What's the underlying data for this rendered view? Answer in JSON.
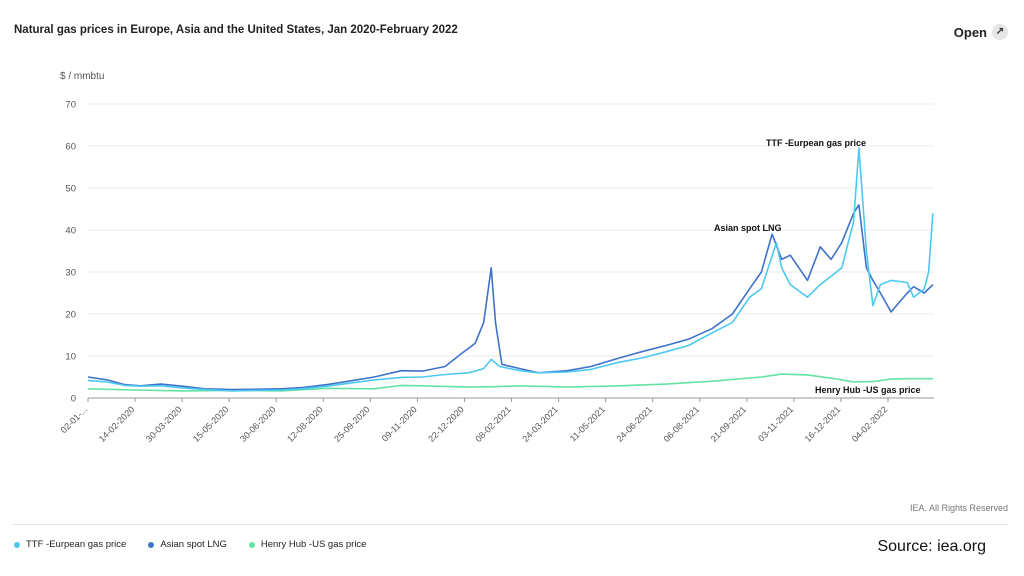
{
  "header": {
    "title": "Natural gas prices in Europe, Asia and the United States, Jan 2020-February 2022",
    "open_label": "Open"
  },
  "footer": {
    "rights": "IEA. All Rights Reserved",
    "source": "Source: iea.org"
  },
  "chart_data": {
    "type": "line",
    "yunit": "$ / mmbtu",
    "ylim": [
      0,
      70
    ],
    "yticks": [
      0,
      10,
      20,
      30,
      40,
      50,
      60,
      70
    ],
    "grid": true,
    "legend_position": "bottom",
    "xlim": [
      "2020-01-02",
      "2022-03-01"
    ],
    "xticks": [
      "02-01-...",
      "14-02-2020",
      "30-03-2020",
      "15-05-2020",
      "30-06-2020",
      "12-08-2020",
      "25-09-2020",
      "09-11-2020",
      "22-12-2020",
      "08-02-2021",
      "24-03-2021",
      "11-05-2021",
      "24-06-2021",
      "06-08-2021",
      "21-09-2021",
      "03-11-2021",
      "16-12-2021",
      "04-02-2022"
    ],
    "series": [
      {
        "name": "TTF -Eurpean gas price",
        "color": "#4dc9f0",
        "annotation": "TTF -Eurpean gas price",
        "points": [
          [
            "2020-01-02",
            4.2
          ],
          [
            "2020-01-20",
            3.8
          ],
          [
            "2020-02-05",
            3.0
          ],
          [
            "2020-02-20",
            2.8
          ],
          [
            "2020-03-10",
            2.9
          ],
          [
            "2020-03-30",
            2.4
          ],
          [
            "2020-04-20",
            2.0
          ],
          [
            "2020-05-15",
            1.7
          ],
          [
            "2020-06-10",
            1.8
          ],
          [
            "2020-06-30",
            1.9
          ],
          [
            "2020-07-20",
            2.2
          ],
          [
            "2020-08-12",
            2.8
          ],
          [
            "2020-09-01",
            3.5
          ],
          [
            "2020-09-25",
            4.3
          ],
          [
            "2020-10-20",
            4.9
          ],
          [
            "2020-11-09",
            5.0
          ],
          [
            "2020-11-30",
            5.6
          ],
          [
            "2020-12-22",
            6.0
          ],
          [
            "2021-01-05",
            7.0
          ],
          [
            "2021-01-12",
            9.2
          ],
          [
            "2021-01-20",
            7.5
          ],
          [
            "2021-02-08",
            6.5
          ],
          [
            "2021-02-25",
            6.0
          ],
          [
            "2021-03-24",
            6.2
          ],
          [
            "2021-04-15",
            6.8
          ],
          [
            "2021-05-11",
            8.5
          ],
          [
            "2021-06-01",
            9.5
          ],
          [
            "2021-06-24",
            11.0
          ],
          [
            "2021-07-15",
            12.5
          ],
          [
            "2021-08-06",
            15.5
          ],
          [
            "2021-08-25",
            18.0
          ],
          [
            "2021-09-10",
            24.0
          ],
          [
            "2021-09-21",
            26.0
          ],
          [
            "2021-10-05",
            37.0
          ],
          [
            "2021-10-10",
            31.0
          ],
          [
            "2021-10-18",
            27.0
          ],
          [
            "2021-11-03",
            24.0
          ],
          [
            "2021-11-15",
            27.0
          ],
          [
            "2021-11-25",
            29.0
          ],
          [
            "2021-12-05",
            31.0
          ],
          [
            "2021-12-16",
            42.0
          ],
          [
            "2021-12-21",
            59.5
          ],
          [
            "2021-12-28",
            35.0
          ],
          [
            "2022-01-03",
            22.0
          ],
          [
            "2022-01-10",
            27.0
          ],
          [
            "2022-01-20",
            28.0
          ],
          [
            "2022-02-04",
            27.5
          ],
          [
            "2022-02-10",
            24.0
          ],
          [
            "2022-02-20",
            26.0
          ],
          [
            "2022-02-24",
            30.0
          ],
          [
            "2022-02-28",
            44.0
          ]
        ]
      },
      {
        "name": "Asian spot LNG",
        "color": "#3f72c9",
        "annotation": "Asian spot LNG",
        "points": [
          [
            "2020-01-02",
            5.0
          ],
          [
            "2020-01-20",
            4.3
          ],
          [
            "2020-02-05",
            3.2
          ],
          [
            "2020-02-20",
            2.9
          ],
          [
            "2020-03-10",
            3.3
          ],
          [
            "2020-03-30",
            2.8
          ],
          [
            "2020-04-20",
            2.2
          ],
          [
            "2020-05-15",
            2.0
          ],
          [
            "2020-06-10",
            2.1
          ],
          [
            "2020-06-30",
            2.2
          ],
          [
            "2020-07-20",
            2.5
          ],
          [
            "2020-08-12",
            3.2
          ],
          [
            "2020-09-01",
            4.0
          ],
          [
            "2020-09-25",
            5.0
          ],
          [
            "2020-10-20",
            6.5
          ],
          [
            "2020-11-09",
            6.4
          ],
          [
            "2020-11-30",
            7.5
          ],
          [
            "2020-12-15",
            10.5
          ],
          [
            "2020-12-28",
            13.0
          ],
          [
            "2021-01-05",
            18.0
          ],
          [
            "2021-01-12",
            31.0
          ],
          [
            "2021-01-16",
            18.0
          ],
          [
            "2021-01-22",
            8.0
          ],
          [
            "2021-02-08",
            7.0
          ],
          [
            "2021-02-25",
            6.0
          ],
          [
            "2021-03-24",
            6.5
          ],
          [
            "2021-04-15",
            7.5
          ],
          [
            "2021-05-11",
            9.5
          ],
          [
            "2021-06-01",
            11.0
          ],
          [
            "2021-06-24",
            12.5
          ],
          [
            "2021-07-15",
            14.0
          ],
          [
            "2021-08-06",
            16.5
          ],
          [
            "2021-08-25",
            20.0
          ],
          [
            "2021-09-10",
            26.0
          ],
          [
            "2021-09-21",
            30.0
          ],
          [
            "2021-10-01",
            39.0
          ],
          [
            "2021-10-10",
            33.0
          ],
          [
            "2021-10-18",
            34.0
          ],
          [
            "2021-11-03",
            28.0
          ],
          [
            "2021-11-15",
            36.0
          ],
          [
            "2021-11-25",
            33.0
          ],
          [
            "2021-12-05",
            37.0
          ],
          [
            "2021-12-16",
            44.0
          ],
          [
            "2021-12-21",
            46.0
          ],
          [
            "2021-12-28",
            31.0
          ],
          [
            "2022-01-03",
            28.0
          ],
          [
            "2022-01-10",
            25.0
          ],
          [
            "2022-01-20",
            20.5
          ],
          [
            "2022-02-04",
            25.0
          ],
          [
            "2022-02-10",
            26.5
          ],
          [
            "2022-02-20",
            25.0
          ],
          [
            "2022-02-28",
            27.0
          ]
        ]
      },
      {
        "name": "Henry Hub -US gas price",
        "color": "#63e3a3",
        "annotation": "Henry Hub -US gas price",
        "points": [
          [
            "2020-01-02",
            2.2
          ],
          [
            "2020-02-14",
            1.9
          ],
          [
            "2020-03-30",
            1.7
          ],
          [
            "2020-05-15",
            1.8
          ],
          [
            "2020-06-30",
            1.7
          ],
          [
            "2020-08-12",
            2.3
          ],
          [
            "2020-09-25",
            2.2
          ],
          [
            "2020-10-20",
            3.0
          ],
          [
            "2020-11-09",
            2.9
          ],
          [
            "2020-12-22",
            2.6
          ],
          [
            "2021-01-15",
            2.7
          ],
          [
            "2021-02-08",
            2.9
          ],
          [
            "2021-03-24",
            2.6
          ],
          [
            "2021-05-11",
            2.9
          ],
          [
            "2021-06-24",
            3.3
          ],
          [
            "2021-08-06",
            4.0
          ],
          [
            "2021-09-21",
            5.0
          ],
          [
            "2021-10-10",
            5.7
          ],
          [
            "2021-11-03",
            5.5
          ],
          [
            "2021-12-01",
            4.5
          ],
          [
            "2021-12-16",
            3.8
          ],
          [
            "2022-01-03",
            3.9
          ],
          [
            "2022-01-20",
            4.5
          ],
          [
            "2022-02-04",
            4.6
          ],
          [
            "2022-02-28",
            4.6
          ]
        ]
      }
    ]
  }
}
